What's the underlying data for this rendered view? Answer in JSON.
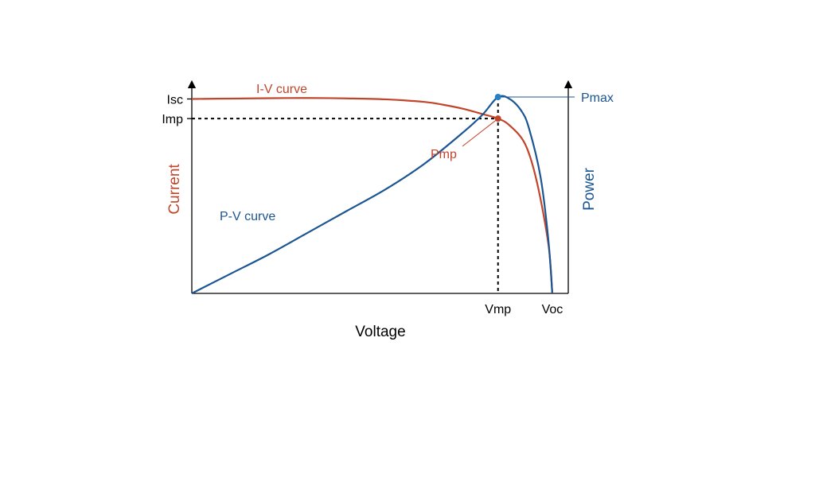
{
  "chart_data": {
    "type": "line",
    "title": "",
    "xlabel": "Voltage",
    "ylabel_left": "Current",
    "ylabel_right": "Power",
    "x_ticks": [
      "Vmp",
      "Voc"
    ],
    "y_ticks_left": [
      "Isc",
      "Imp"
    ],
    "y_ticks_right": [
      "Pmax"
    ],
    "xlim": [
      0,
      1
    ],
    "ylim_current": [
      0,
      1
    ],
    "ylim_power": [
      0,
      1
    ],
    "grid": false,
    "series": [
      {
        "name": "I-V curve",
        "axis": "left",
        "color": "#c0452a",
        "x": [
          0,
          0.1,
          0.2,
          0.3,
          0.4,
          0.5,
          0.6,
          0.65,
          0.7,
          0.75,
          0.79,
          0.82,
          0.86,
          0.89,
          0.92,
          0.93
        ],
        "y": [
          0.99,
          0.992,
          0.994,
          0.995,
          0.993,
          0.988,
          0.975,
          0.96,
          0.94,
          0.913,
          0.89,
          0.855,
          0.76,
          0.57,
          0.25,
          0.0
        ]
      },
      {
        "name": "P-V curve",
        "axis": "right",
        "color": "#1b5592",
        "x": [
          0,
          0.1,
          0.2,
          0.3,
          0.4,
          0.5,
          0.6,
          0.7,
          0.75,
          0.79,
          0.82,
          0.85,
          0.87,
          0.9,
          0.92,
          0.93
        ],
        "y": [
          0,
          0.1,
          0.2,
          0.31,
          0.42,
          0.53,
          0.66,
          0.82,
          0.91,
          1.0,
          0.99,
          0.93,
          0.84,
          0.59,
          0.27,
          0.0
        ]
      }
    ],
    "annotations": {
      "pmp_label": "Pmp",
      "pmax_label": "Pmax",
      "iv_label": "I-V curve",
      "pv_label": "P-V curve"
    },
    "points": {
      "vmp": 0.79,
      "voc": 0.93,
      "isc": 0.99,
      "imp": 0.89,
      "pmax": 1.0
    },
    "colors": {
      "current": "#c0452a",
      "power": "#1b5592",
      "axis": "#000000",
      "pmax_dot": "#2a7fc4"
    }
  }
}
